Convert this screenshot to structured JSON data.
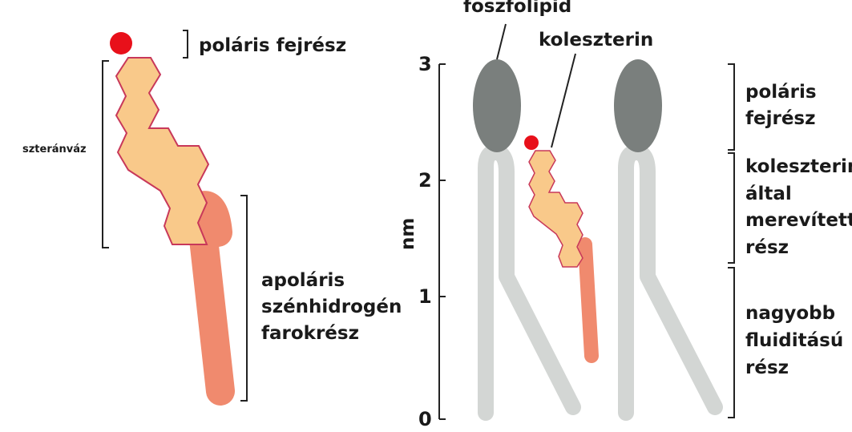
{
  "left_diagram": {
    "polar_head_label": "poláris fejrész",
    "sterane_label": "szteránváz",
    "apolar_label_lines": [
      "apoláris",
      "szénhidrogén",
      "farokrész"
    ]
  },
  "right_diagram": {
    "phospholipid_label": "foszfolipid",
    "cholesterol_label": "koleszterin",
    "axis_unit": "nm",
    "ticks": [
      "0",
      "1",
      "2",
      "3"
    ],
    "region_polar_lines": [
      "poláris",
      "fejrész"
    ],
    "region_rigid_lines": [
      "koleszterin",
      "által",
      "merevített",
      "rész"
    ],
    "region_fluid_lines": [
      "nagyobb",
      "fluiditású",
      "rész"
    ]
  },
  "colors": {
    "head_red": "#e8101a",
    "sterol_fill": "#f9c98a",
    "sterol_stroke": "#c8385a",
    "tail_salmon": "#f08a6e",
    "phospholipid_head": "#7a7f7d",
    "phospholipid_tail": "#d3d6d4"
  }
}
